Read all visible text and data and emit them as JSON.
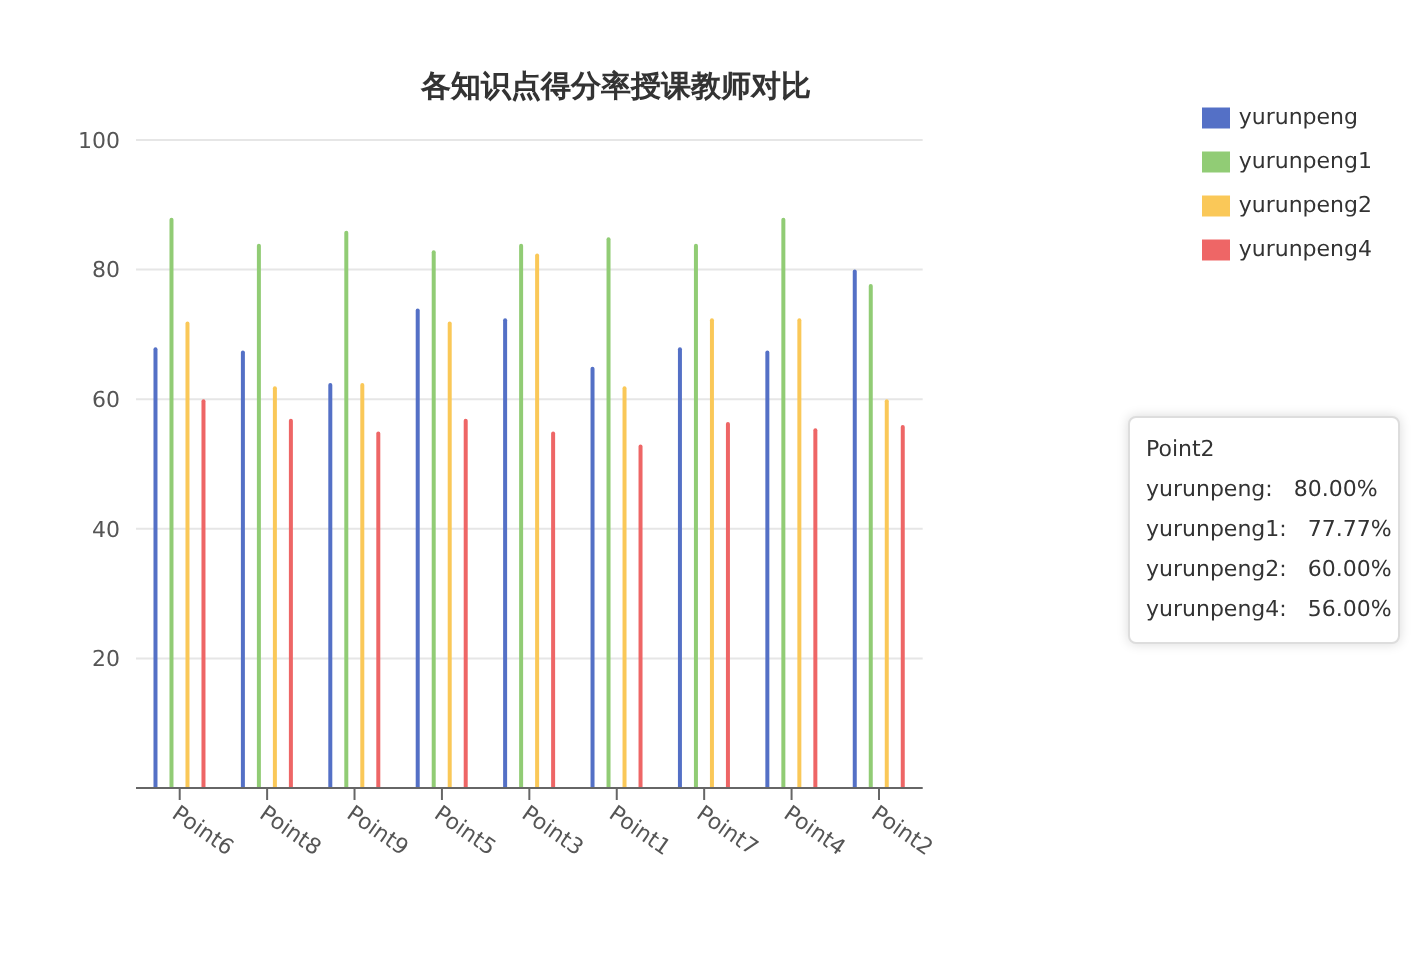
{
  "chart_data": {
    "type": "bar",
    "title": "各知识点得分率授课教师对比",
    "categories": [
      "Point6",
      "Point8",
      "Point9",
      "Point5",
      "Point3",
      "Point1",
      "Point7",
      "Point4",
      "Point2"
    ],
    "series": [
      {
        "name": "yurunpeng",
        "color": "#5470c6",
        "values": [
          68,
          67.5,
          62.5,
          74,
          72.5,
          65,
          68,
          67.5,
          80
        ]
      },
      {
        "name": "yurunpeng1",
        "color": "#91cc75",
        "values": [
          88,
          84,
          86,
          83,
          84,
          85,
          84,
          88,
          77.77
        ]
      },
      {
        "name": "yurunpeng2",
        "color": "#fac858",
        "values": [
          72,
          62,
          62.5,
          72,
          82.5,
          62,
          72.5,
          72.5,
          60
        ]
      },
      {
        "name": "yurunpeng4",
        "color": "#ee6666",
        "values": [
          60,
          57,
          55,
          57,
          55,
          53,
          56.5,
          55.5,
          56
        ]
      }
    ],
    "ylim": [
      0,
      100
    ],
    "yticks": [
      {
        "value": 0,
        "label": null
      },
      20,
      40,
      60,
      80,
      100
    ],
    "grid": "y",
    "legend": "top right",
    "annotations": [
      "Point2",
      "yurunpeng:   80.00%",
      "yurunpeng1:   77.77%",
      "yurunpeng2:   60.00%",
      "yurunpeng4:   56.00%"
    ]
  }
}
